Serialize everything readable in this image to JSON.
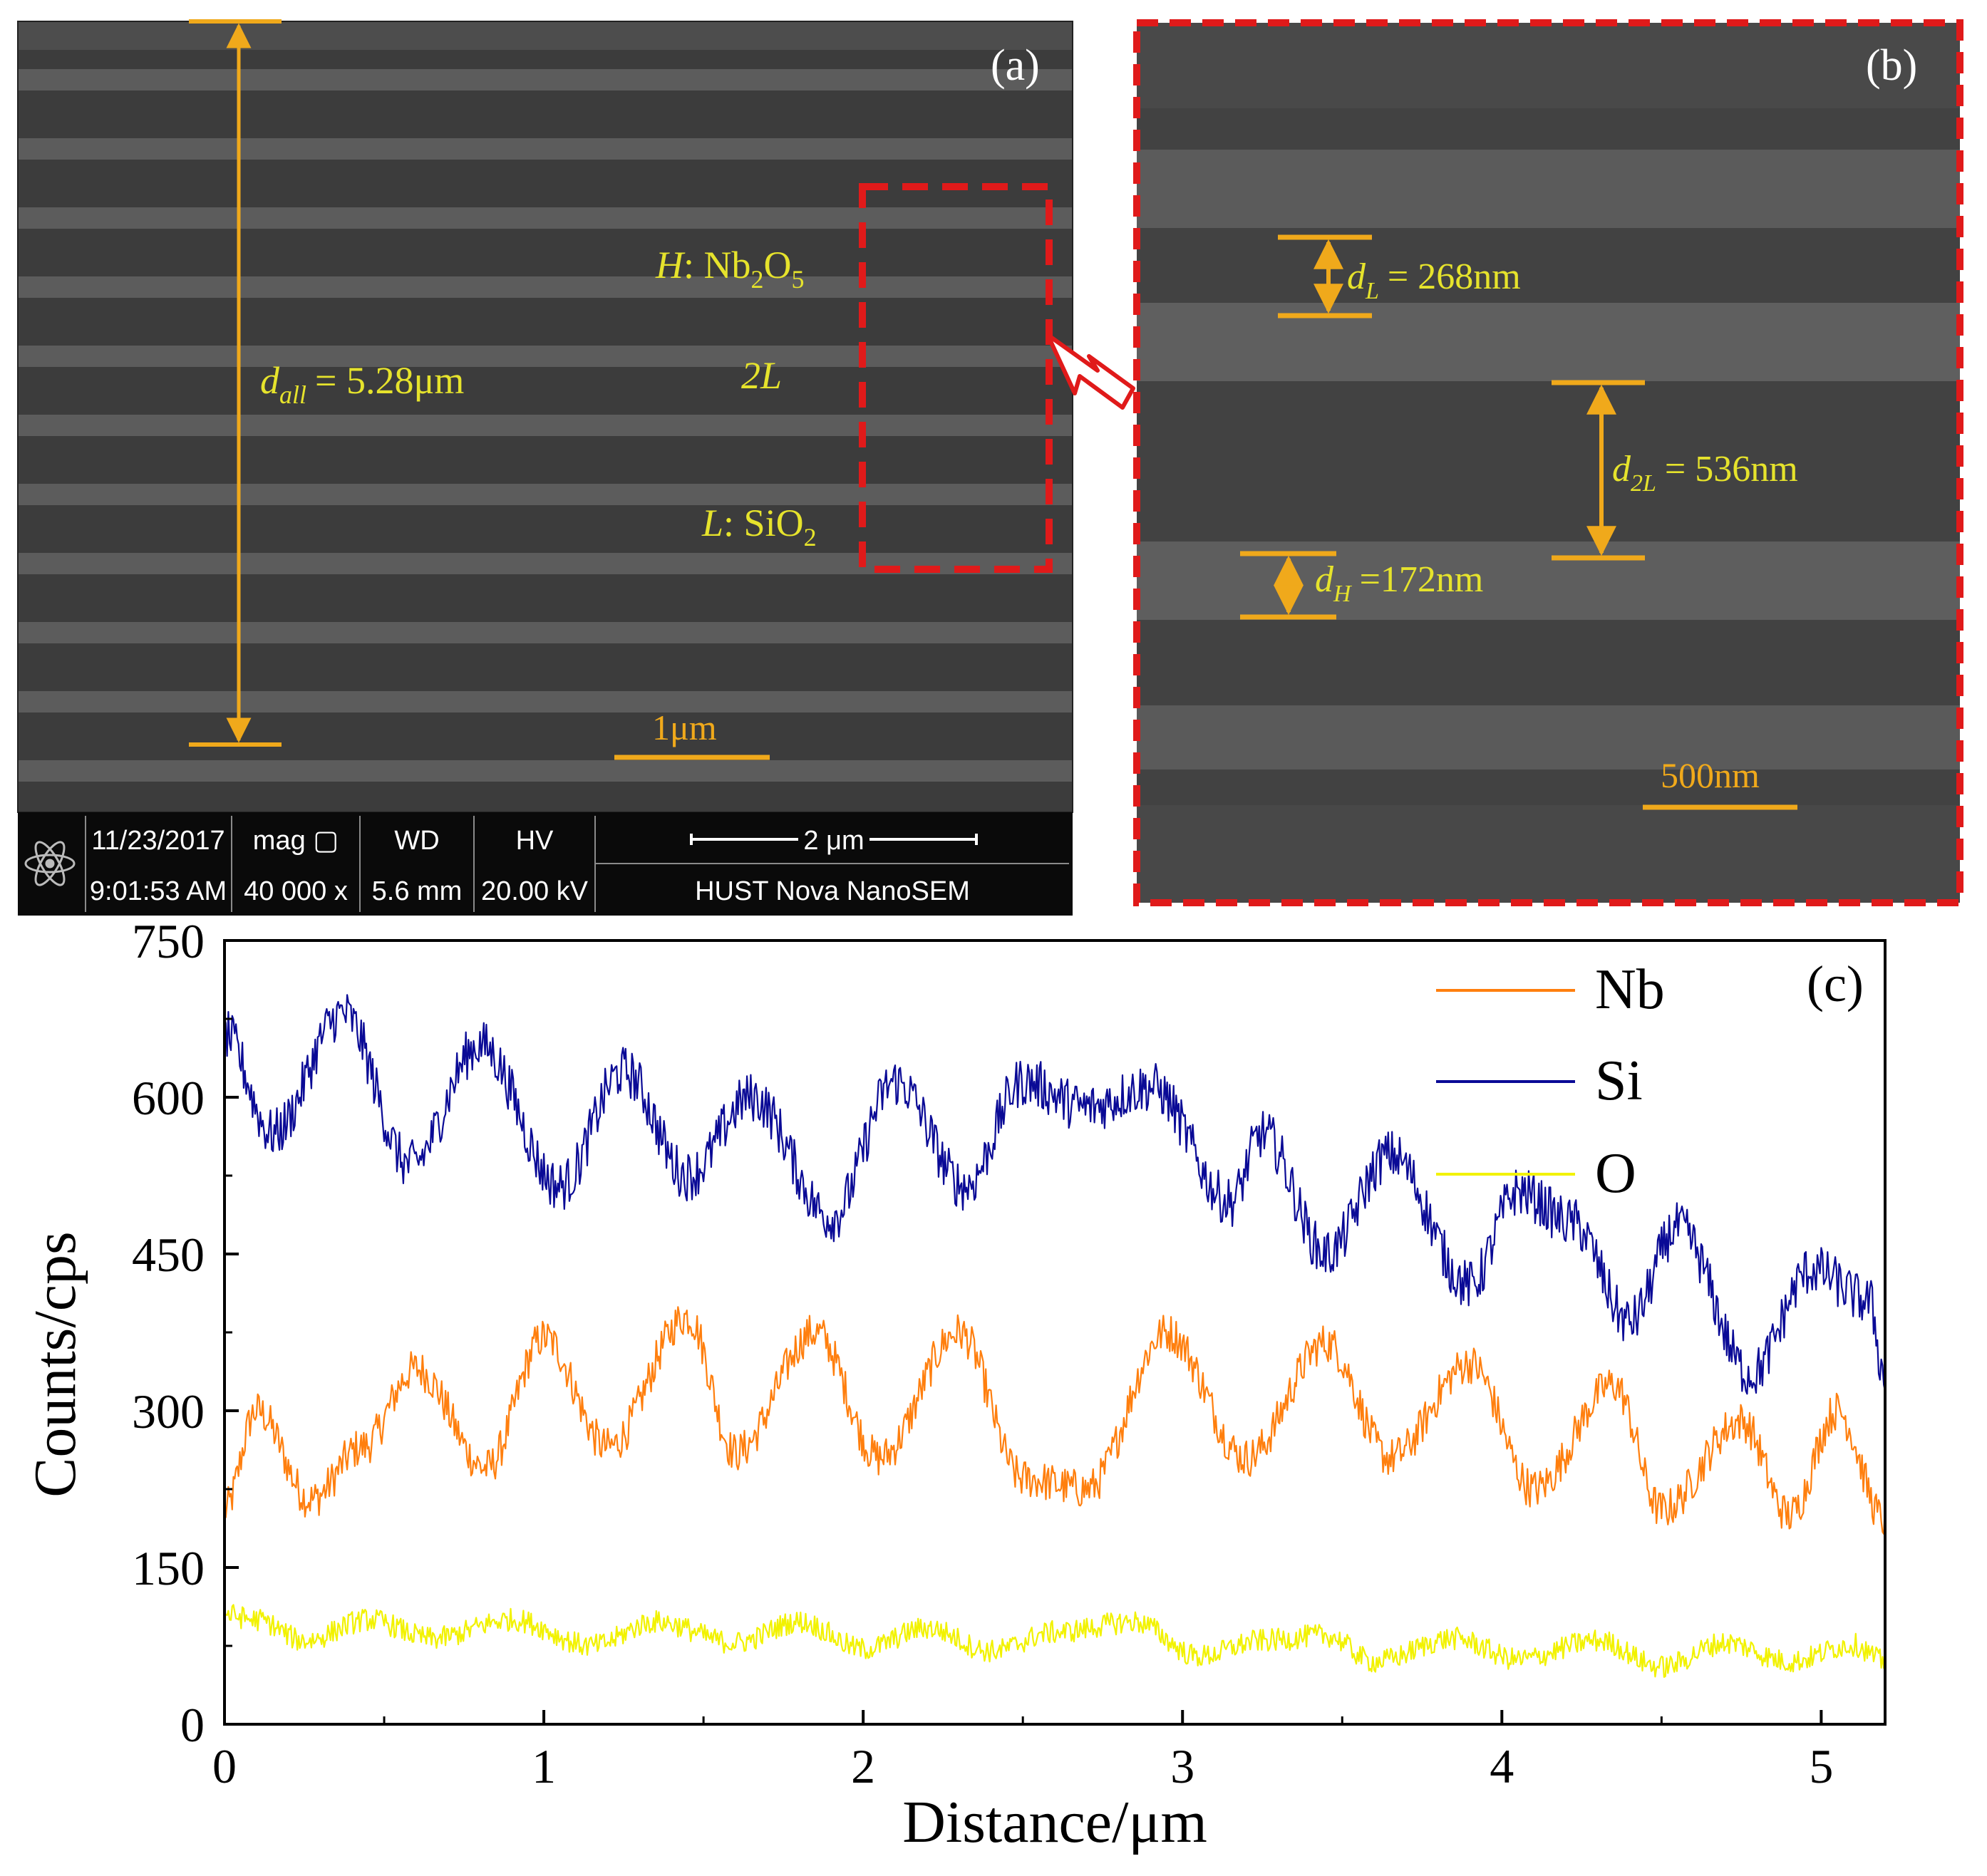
{
  "panel_a": {
    "label": "(a)",
    "d_all": {
      "symbol": "d",
      "subscript": "all",
      "value": "= 5.28μm"
    },
    "layer_h": {
      "letter": "H",
      "sep": ": Nb",
      "sub1": "2",
      "mid": "O",
      "sub2": "5"
    },
    "layer_2l": "2L",
    "layer_l": {
      "letter": "L",
      "sep": ": SiO",
      "sub": "2"
    },
    "scale_bar": "1μm",
    "sem_info": {
      "date": "11/23/2017",
      "time": "9:01:53 AM",
      "mag_label": "mag ▢",
      "mag_value": "40 000 x",
      "wd_label": "WD",
      "wd_value": "5.6 mm",
      "hv_label": "HV",
      "hv_value": "20.00 kV",
      "scale": "2 μm",
      "instrument": "HUST Nova NanoSEM"
    }
  },
  "panel_b": {
    "label": "(b)",
    "d_l": {
      "symbol": "d",
      "subscript": "L",
      "value": "= 268nm"
    },
    "d_2l": {
      "symbol": "d",
      "subscript": "2L",
      "value": "= 536nm"
    },
    "d_h": {
      "symbol": "d",
      "subscript": "H",
      "value": "=172nm"
    },
    "scale_bar": "500nm"
  },
  "colors": {
    "annotation": "#f0a91b",
    "label_yellow": "#e6e32c",
    "frame_red": "#e01a1a",
    "nb": "#ff7f0e",
    "si": "#0a0a96",
    "o": "#f2f200"
  },
  "chart_data": {
    "type": "line",
    "panel_label": "(c)",
    "xlabel": "Distance/μm",
    "ylabel": "Counts/cps",
    "xlim": [
      0,
      5.2
    ],
    "ylim": [
      0,
      750
    ],
    "xticks": [
      0,
      1,
      2,
      3,
      4,
      5
    ],
    "yticks": [
      0,
      150,
      300,
      450,
      600,
      750
    ],
    "legend_position": "top-right",
    "series": [
      {
        "name": "Nb",
        "color": "#ff7f0e",
        "x": [
          0,
          0.1,
          0.27,
          0.43,
          0.6,
          0.82,
          1.0,
          1.2,
          1.45,
          1.6,
          1.85,
          2.05,
          2.3,
          2.5,
          2.7,
          2.95,
          3.2,
          3.45,
          3.65,
          3.9,
          4.1,
          4.35,
          4.5,
          4.75,
          4.9,
          5.05,
          5.2
        ],
        "values": [
          205,
          300,
          215,
          265,
          340,
          245,
          370,
          265,
          390,
          260,
          375,
          255,
          375,
          235,
          225,
          375,
          255,
          365,
          255,
          345,
          225,
          325,
          205,
          290,
          200,
          300,
          195
        ]
      },
      {
        "name": "Si",
        "color": "#0a0a96",
        "x": [
          0,
          0.15,
          0.37,
          0.58,
          0.8,
          1.05,
          1.25,
          1.45,
          1.65,
          1.9,
          2.1,
          2.32,
          2.5,
          2.7,
          2.9,
          3.15,
          3.25,
          3.45,
          3.65,
          3.9,
          4.05,
          4.22,
          4.4,
          4.55,
          4.78,
          4.97,
          5.15,
          5.2
        ],
        "values": [
          660,
          565,
          680,
          535,
          650,
          515,
          625,
          525,
          600,
          485,
          615,
          515,
          615,
          590,
          610,
          500,
          565,
          450,
          545,
          420,
          510,
          480,
          385,
          475,
          335,
          435,
          405,
          330
        ]
      },
      {
        "name": "O",
        "color": "#f2f200",
        "x": [
          0,
          0.1,
          0.25,
          0.45,
          0.65,
          0.9,
          1.15,
          1.35,
          1.6,
          1.8,
          2.0,
          2.2,
          2.4,
          2.6,
          2.85,
          3.05,
          3.25,
          3.45,
          3.6,
          3.85,
          4.05,
          4.3,
          4.5,
          4.7,
          4.9,
          5.1,
          5.2
        ],
        "values": [
          105,
          100,
          80,
          100,
          82,
          100,
          75,
          98,
          78,
          98,
          72,
          92,
          70,
          88,
          98,
          65,
          80,
          85,
          60,
          82,
          62,
          80,
          55,
          78,
          60,
          76,
          60
        ]
      }
    ]
  }
}
